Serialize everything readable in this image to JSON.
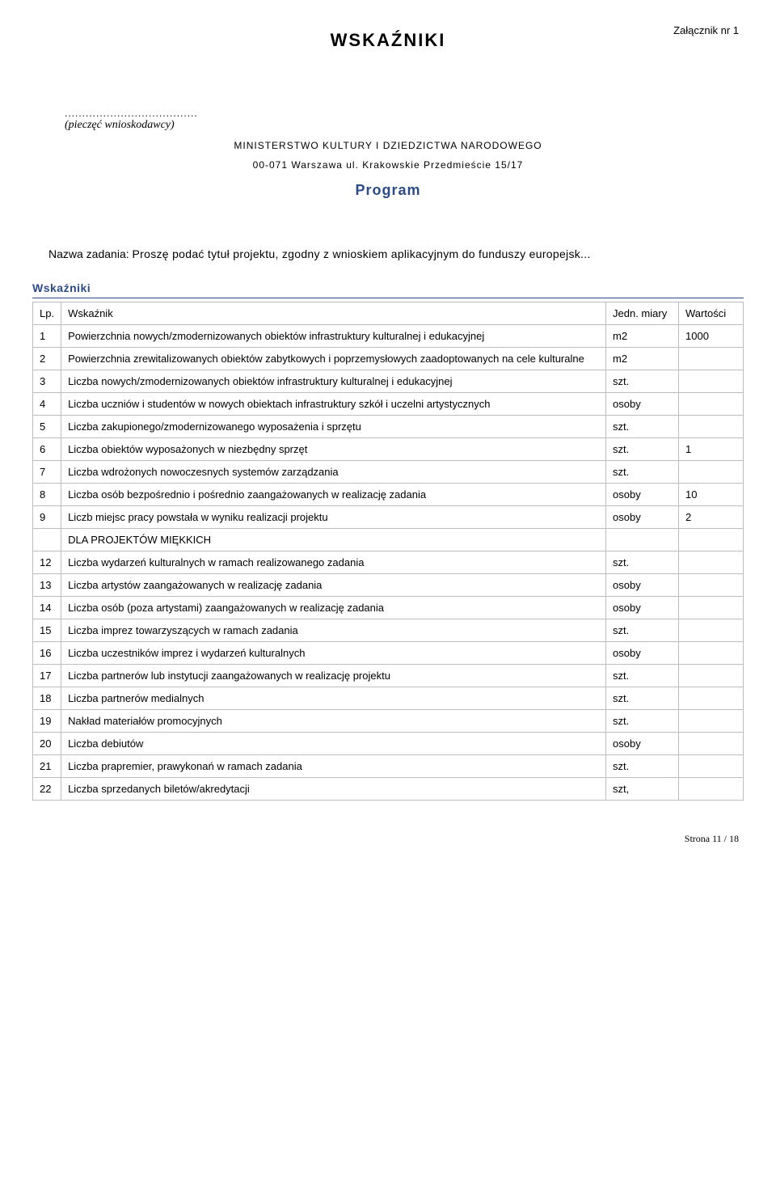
{
  "attachment_label": "Załącznik nr 1",
  "main_title": "WSKAŹNIKI",
  "stamp_dots": "......................................",
  "stamp_caption": "(pieczęć wnioskodawcy)",
  "ministry_line1": "MINISTERSTWO KULTURY I DZIEDZICTWA NARODOWEGO",
  "ministry_line2": "00-071 Warszawa ul. Krakowskie Przedmieście 15/17",
  "program_label": "Program",
  "task_prefix": "Nazwa zadania:",
  "task_value": "Proszę podać tytuł projektu, zgodny z wnioskiem aplikacyjnym do funduszy europejsk...",
  "section_label": "Wskaźniki",
  "header": {
    "lp": "Lp.",
    "name": "Wskaźnik",
    "unit": "Jedn. miary",
    "value": "Wartości"
  },
  "rows": [
    {
      "lp": "1",
      "name": "Powierzchnia nowych/zmodernizowanych obiektów infrastruktury kulturalnej i edukacyjnej",
      "unit": "m2",
      "value": "1000"
    },
    {
      "lp": "2",
      "name": "Powierzchnia zrewitalizowanych obiektów zabytkowych i poprzemysłowych zaadoptowanych na cele kulturalne",
      "unit": "m2",
      "value": ""
    },
    {
      "lp": "3",
      "name": "Liczba nowych/zmodernizowanych obiektów infrastruktury kulturalnej i edukacyjnej",
      "unit": "szt.",
      "value": ""
    },
    {
      "lp": "4",
      "name": "Liczba uczniów i studentów w nowych obiektach infrastruktury szkół i uczelni artystycznych",
      "unit": "osoby",
      "value": ""
    },
    {
      "lp": "5",
      "name": "Liczba zakupionego/zmodernizowanego wyposażenia i sprzętu",
      "unit": "szt.",
      "value": ""
    },
    {
      "lp": "6",
      "name": "Liczba obiektów wyposażonych w niezbędny sprzęt",
      "unit": "szt.",
      "value": "1"
    },
    {
      "lp": "7",
      "name": "Liczba wdrożonych nowoczesnych systemów zarządzania",
      "unit": "szt.",
      "value": ""
    },
    {
      "lp": "8",
      "name": "Liczba osób bezpośrednio i pośrednio zaangażowanych w realizację zadania",
      "unit": "osoby",
      "value": "10"
    },
    {
      "lp": "9",
      "name": "Liczb miejsc pracy powstała w wyniku realizacji projektu",
      "unit": "osoby",
      "value": "2"
    },
    {
      "lp": "",
      "name": "DLA PROJEKTÓW MIĘKKICH",
      "unit": "",
      "value": ""
    },
    {
      "lp": "12",
      "name": "Liczba wydarzeń kulturalnych w ramach realizowanego zadania",
      "unit": "szt.",
      "value": ""
    },
    {
      "lp": "13",
      "name": "Liczba artystów zaangażowanych w realizację zadania",
      "unit": "osoby",
      "value": ""
    },
    {
      "lp": "14",
      "name": "Liczba osób (poza artystami) zaangażowanych w realizację zadania",
      "unit": "osoby",
      "value": ""
    },
    {
      "lp": "15",
      "name": "Liczba imprez towarzyszących w ramach zadania",
      "unit": "szt.",
      "value": ""
    },
    {
      "lp": "16",
      "name": "Liczba uczestników imprez i wydarzeń kulturalnych",
      "unit": "osoby",
      "value": ""
    },
    {
      "lp": "17",
      "name": "Liczba partnerów lub instytucji zaangażowanych w realizację projektu",
      "unit": "szt.",
      "value": ""
    },
    {
      "lp": "18",
      "name": "Liczba partnerów medialnych",
      "unit": "szt.",
      "value": ""
    },
    {
      "lp": "19",
      "name": "Nakład materiałów promocyjnych",
      "unit": "szt.",
      "value": ""
    },
    {
      "lp": "20",
      "name": "Liczba debiutów",
      "unit": "osoby",
      "value": ""
    },
    {
      "lp": "21",
      "name": "Liczba prapremier, prawykonań w ramach zadania",
      "unit": "szt.",
      "value": ""
    },
    {
      "lp": "22",
      "name": "Liczba sprzedanych biletów/akredytacji",
      "unit": "szt,",
      "value": ""
    }
  ],
  "footer": "Strona 11 / 18"
}
